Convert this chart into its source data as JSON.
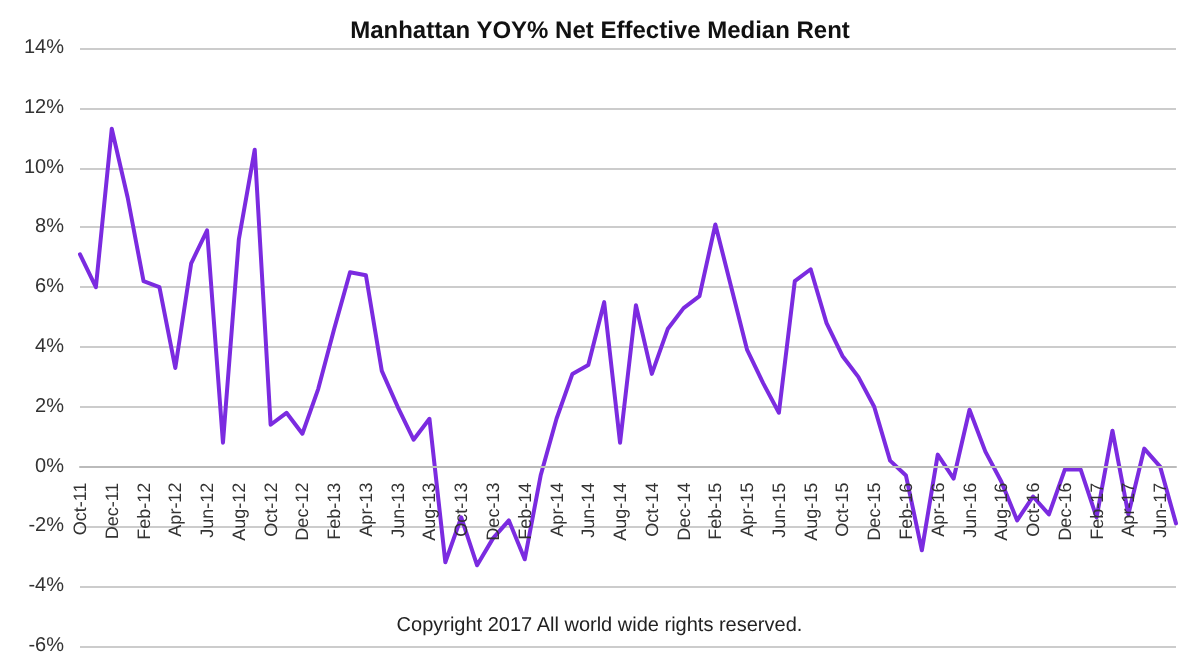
{
  "chart_data": {
    "type": "line",
    "title": "Manhattan YOY% Net Effective Median Rent",
    "annotations": [
      "Copyright 2017 All world wide rights reserved."
    ],
    "categories": [
      "Oct-11",
      null,
      "Dec-11",
      null,
      "Feb-12",
      null,
      "Apr-12",
      null,
      "Jun-12",
      null,
      "Aug-12",
      null,
      "Oct-12",
      null,
      "Dec-12",
      null,
      "Feb-13",
      null,
      "Apr-13",
      null,
      "Jun-13",
      null,
      "Aug-13",
      null,
      "Oct-13",
      null,
      "Dec-13",
      null,
      "Feb-14",
      null,
      "Apr-14",
      null,
      "Jun-14",
      null,
      "Aug-14",
      null,
      "Oct-14",
      null,
      "Dec-14",
      null,
      "Feb-15",
      null,
      "Apr-15",
      null,
      "Jun-15",
      null,
      "Aug-15",
      null,
      "Oct-15",
      null,
      "Dec-15",
      null,
      "Feb-16",
      null,
      "Apr-16",
      null,
      "Jun-16",
      null,
      "Aug-16",
      null,
      "Oct-16",
      null,
      "Dec-16",
      null,
      "Feb-17",
      null,
      "Apr-17",
      null,
      "Jun-17",
      null
    ],
    "series": [
      {
        "color": "#7b2be0",
        "values": [
          7.1,
          6.0,
          11.3,
          9.0,
          6.2,
          6.0,
          3.3,
          6.8,
          7.9,
          0.8,
          7.6,
          10.6,
          1.4,
          1.8,
          1.1,
          2.6,
          4.6,
          6.5,
          6.4,
          3.2,
          2.0,
          0.9,
          1.6,
          -3.2,
          -1.7,
          -3.3,
          -2.4,
          -1.8,
          -3.1,
          -0.3,
          1.6,
          3.1,
          3.4,
          5.5,
          0.8,
          5.4,
          3.1,
          4.6,
          5.3,
          5.7,
          8.1,
          6.0,
          3.9,
          2.8,
          1.8,
          6.2,
          6.6,
          4.8,
          3.7,
          3.0,
          2.0,
          0.2,
          -0.3,
          -2.8,
          0.4,
          -0.4,
          1.9,
          0.5,
          -0.5,
          -1.8,
          -1.0,
          -1.6,
          -0.1,
          -0.1,
          -1.7,
          1.2,
          -1.6,
          0.6,
          0.0,
          -1.9
        ]
      }
    ],
    "ylim": [
      -6,
      14
    ],
    "yticks": [
      {
        "value": -6,
        "label": "-6%"
      },
      {
        "value": -4,
        "label": "-4%"
      },
      {
        "value": -2,
        "label": "-2%"
      },
      {
        "value": 0,
        "label": "0%"
      },
      {
        "value": 2,
        "label": "2%"
      },
      {
        "value": 4,
        "label": "4%"
      },
      {
        "value": 6,
        "label": "6%"
      },
      {
        "value": 8,
        "label": "8%"
      },
      {
        "value": 10,
        "label": "10%"
      },
      {
        "value": 12,
        "label": "12%"
      },
      {
        "value": 14,
        "label": "14%"
      }
    ],
    "grid": "y",
    "marker": "none",
    "line_style": "solid"
  }
}
